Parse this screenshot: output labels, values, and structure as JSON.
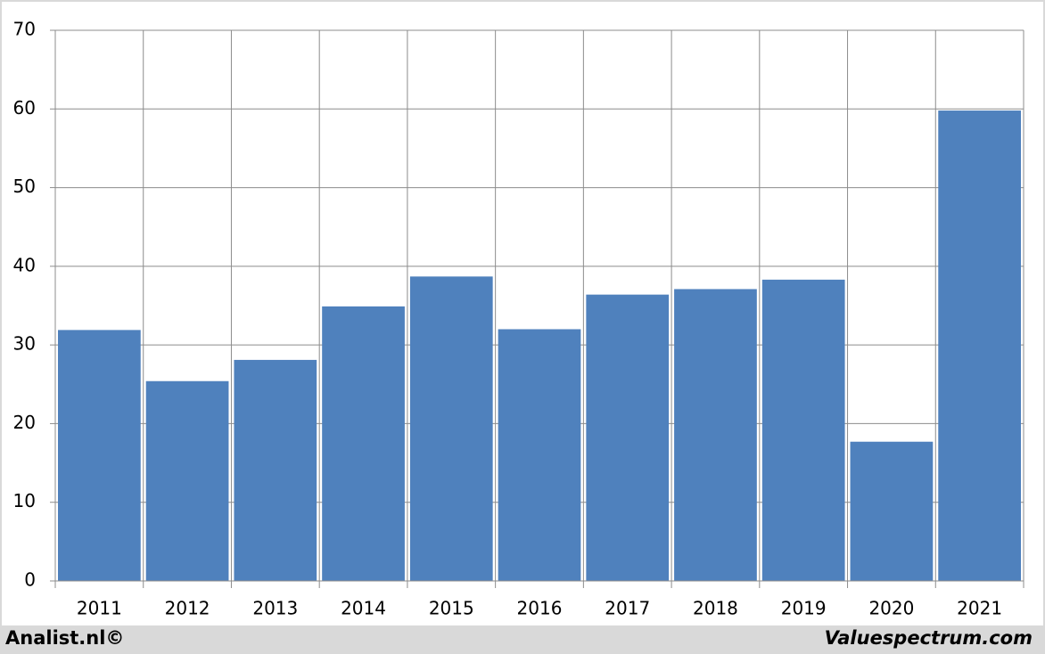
{
  "chart_data": {
    "type": "bar",
    "categories": [
      "2011",
      "2012",
      "2013",
      "2014",
      "2015",
      "2016",
      "2017",
      "2018",
      "2019",
      "2020",
      "2021"
    ],
    "values": [
      31.9,
      25.4,
      28.1,
      34.9,
      38.7,
      32.0,
      36.4,
      37.1,
      38.3,
      17.7,
      59.8
    ],
    "color": "#4f81bd",
    "ylim": [
      0,
      70
    ],
    "yticks": [
      0,
      10,
      20,
      30,
      40,
      50,
      60,
      70
    ],
    "grid": true,
    "footer_left": "Analist.nl©",
    "footer_right": "Valuespectrum.com"
  }
}
